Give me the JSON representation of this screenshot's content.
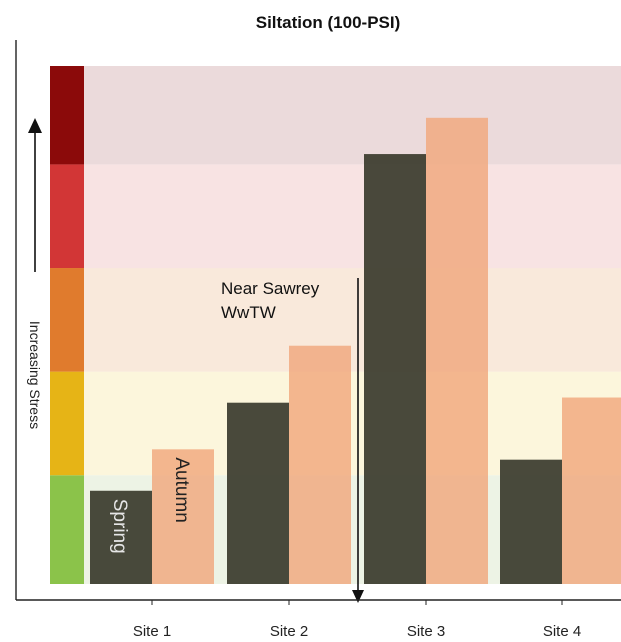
{
  "chart_data": {
    "type": "bar",
    "title": "Siltation (100-PSI)",
    "xlabel": "",
    "ylabel": "Increasing Stress",
    "categories": [
      "Site 1",
      "Site 2",
      "Site 3",
      "Site 4"
    ],
    "series": [
      {
        "name": "Spring",
        "color": "#3f3f31",
        "values": [
          18,
          35,
          83,
          24
        ]
      },
      {
        "name": "Autumn",
        "color": "#f0a77c",
        "values": [
          26,
          46,
          90,
          36
        ]
      }
    ],
    "ylim": [
      0,
      100
    ],
    "stress_bands": [
      {
        "from": 0,
        "to": 21,
        "color": "#8bc34a",
        "background": "#edf3e5"
      },
      {
        "from": 21,
        "to": 41,
        "color": "#e6b416",
        "background": "#fcf6dc"
      },
      {
        "from": 41,
        "to": 61,
        "color": "#e07b2d",
        "background": "#f9e9db"
      },
      {
        "from": 61,
        "to": 81,
        "color": "#d23636",
        "background": "#f8e3e3"
      },
      {
        "from": 81,
        "to": 100,
        "color": "#8b0a0a",
        "background": "#ebdadb"
      }
    ],
    "bar_labels": [
      "Spring",
      "Autumn"
    ],
    "annotation": {
      "lines": [
        "Near Sawrey",
        "WwTW"
      ],
      "x_position": 2.5
    },
    "grid": false,
    "legend": "none"
  }
}
